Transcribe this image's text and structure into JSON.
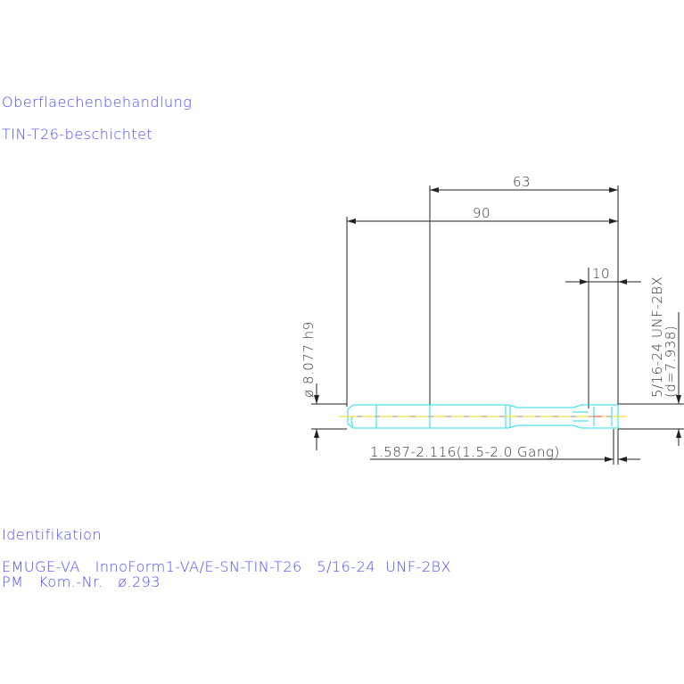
{
  "notes": {
    "surface_label": "Oberflaechenbehandlung",
    "surface_value": "TIN-T26-beschichtet",
    "ident_label": "Identifikation",
    "ident_line1": "EMUGE-VA   InnoForm1-VA/E-SN-TIN-T26   5/16-24  UNF-2BX",
    "ident_line2": "PM   Kom.-Nr.   ø.293"
  },
  "dimensions": {
    "thread_length": "63",
    "total_length": "90",
    "chamfer_length": "10",
    "shank_diameter": "ø 8.077 h9",
    "thread_spec": "5/16-24  UNF-2BX",
    "thread_diameter": "(d=7.938)",
    "chamfer_note": "1.587-2.116(1.5-2.0  Gang)"
  },
  "colors": {
    "text": "#4848ff",
    "tool_outline": "#22dde8",
    "centerline": "#f0e040",
    "dimension": "#222222"
  }
}
